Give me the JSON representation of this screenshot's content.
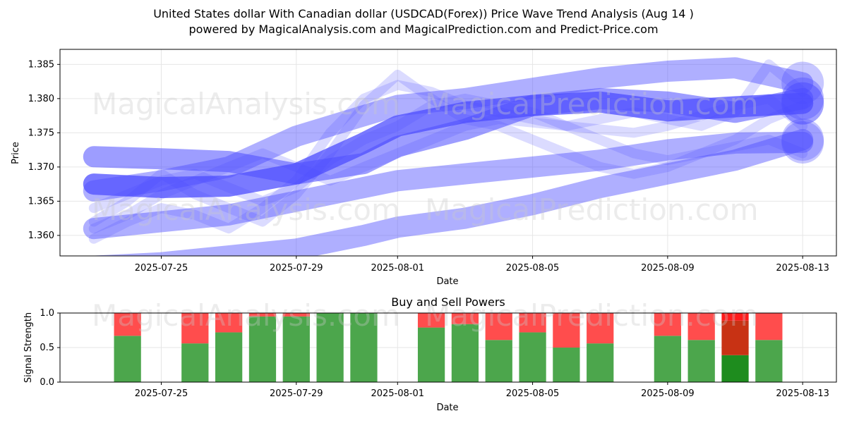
{
  "title_line1": "United States dollar With Canadian dollar (USDCAD(Forex)) Price Wave Trend Analysis (Aug 14 )",
  "title_line2": "powered by MagicalAnalysis.com and MagicalPrediction.com and Predict-Price.com",
  "watermarks": [
    "MagicalAnalysis.com",
    "MagicalPrediction.com"
  ],
  "colors": {
    "wave": "#4d4dff",
    "buy": "#4ca64c",
    "sell": "#ff4d4d",
    "buy_strong": "#1e8c1e",
    "sell_strong": "#ff1a1a",
    "sell_dark": "#c83214"
  },
  "chart_data": [
    {
      "type": "line",
      "title": "",
      "xlabel": "Date",
      "ylabel": "Price",
      "x_range": [
        "2025-07-22",
        "2025-08-14"
      ],
      "ylim": [
        1.357,
        1.3872
      ],
      "y_ticks": [
        1.36,
        1.365,
        1.37,
        1.375,
        1.38,
        1.385
      ],
      "x_ticks": [
        "2025-07-25",
        "2025-07-29",
        "2025-08-01",
        "2025-08-05",
        "2025-08-09",
        "2025-08-13"
      ],
      "grid": true,
      "series": [
        {
          "x": [
            "2025-07-23",
            "2025-07-25",
            "2025-07-27",
            "2025-07-29",
            "2025-07-31",
            "2025-08-01",
            "2025-08-03",
            "2025-08-05",
            "2025-08-07",
            "2025-08-09",
            "2025-08-11",
            "2025-08-13"
          ],
          "values": [
            1.3675,
            1.367,
            1.3672,
            1.369,
            1.3735,
            1.376,
            1.378,
            1.379,
            1.3795,
            1.3782,
            1.3788,
            1.3793
          ],
          "opacity": 0.75
        },
        {
          "x": [
            "2025-07-23",
            "2025-07-25",
            "2025-07-27",
            "2025-07-29",
            "2025-07-31",
            "2025-08-01",
            "2025-08-03",
            "2025-08-05",
            "2025-08-07",
            "2025-08-09",
            "2025-08-11",
            "2025-08-13"
          ],
          "values": [
            1.3715,
            1.3712,
            1.3708,
            1.369,
            1.3705,
            1.373,
            1.3755,
            1.379,
            1.38,
            1.3795,
            1.378,
            1.38
          ],
          "opacity": 0.55
        },
        {
          "x": [
            "2025-07-23",
            "2025-07-25",
            "2025-07-27",
            "2025-07-29",
            "2025-07-31",
            "2025-08-01",
            "2025-08-03",
            "2025-08-05",
            "2025-08-07",
            "2025-08-09",
            "2025-08-11",
            "2025-08-13"
          ],
          "values": [
            1.3665,
            1.368,
            1.37,
            1.3745,
            1.3775,
            1.379,
            1.38,
            1.3815,
            1.383,
            1.384,
            1.3845,
            1.3823
          ],
          "opacity": 0.45
        },
        {
          "x": [
            "2025-07-23",
            "2025-07-25",
            "2025-07-27",
            "2025-07-29",
            "2025-07-31",
            "2025-08-01",
            "2025-08-03",
            "2025-08-05",
            "2025-08-07",
            "2025-08-09",
            "2025-08-11",
            "2025-08-13"
          ],
          "values": [
            1.361,
            1.362,
            1.363,
            1.365,
            1.367,
            1.368,
            1.369,
            1.37,
            1.371,
            1.3725,
            1.3735,
            1.3736
          ],
          "opacity": 0.45
        },
        {
          "x": [
            "2025-07-23",
            "2025-07-25",
            "2025-07-27",
            "2025-07-29",
            "2025-07-31",
            "2025-08-01",
            "2025-08-03",
            "2025-08-05",
            "2025-08-07",
            "2025-08-09",
            "2025-08-11",
            "2025-08-13"
          ],
          "values": [
            1.3555,
            1.356,
            1.357,
            1.358,
            1.36,
            1.3612,
            1.3625,
            1.3645,
            1.367,
            1.369,
            1.371,
            1.374
          ],
          "opacity": 0.45
        },
        {
          "x": [
            "2025-07-23",
            "2025-07-24",
            "2025-07-25",
            "2025-07-26",
            "2025-07-27",
            "2025-07-28",
            "2025-07-29",
            "2025-07-30",
            "2025-07-31",
            "2025-08-01",
            "2025-08-02",
            "2025-08-03",
            "2025-08-04",
            "2025-08-05",
            "2025-08-06",
            "2025-08-07",
            "2025-08-08",
            "2025-08-09",
            "2025-08-10",
            "2025-08-11",
            "2025-08-12",
            "2025-08-13"
          ],
          "values": [
            1.362,
            1.365,
            1.369,
            1.366,
            1.364,
            1.362,
            1.366,
            1.372,
            1.379,
            1.3835,
            1.38,
            1.377,
            1.376,
            1.374,
            1.372,
            1.37,
            1.369,
            1.37,
            1.372,
            1.374,
            1.377,
            1.379
          ],
          "opacity": 0.2
        },
        {
          "x": [
            "2025-07-23",
            "2025-07-24",
            "2025-07-25",
            "2025-07-26",
            "2025-07-27",
            "2025-07-28",
            "2025-07-29",
            "2025-07-30",
            "2025-07-31",
            "2025-08-01",
            "2025-08-02",
            "2025-08-03",
            "2025-08-04",
            "2025-08-05",
            "2025-08-06",
            "2025-08-07",
            "2025-08-08",
            "2025-08-09",
            "2025-08-10",
            "2025-08-11",
            "2025-08-12",
            "2025-08-13"
          ],
          "values": [
            1.361,
            1.363,
            1.366,
            1.368,
            1.37,
            1.372,
            1.37,
            1.368,
            1.37,
            1.372,
            1.374,
            1.376,
            1.377,
            1.3765,
            1.376,
            1.3755,
            1.375,
            1.376,
            1.3775,
            1.379,
            1.38,
            1.376
          ],
          "opacity": 0.2
        },
        {
          "x": [
            "2025-07-23",
            "2025-07-24",
            "2025-07-25",
            "2025-07-26",
            "2025-07-27",
            "2025-07-28",
            "2025-07-29",
            "2025-07-30",
            "2025-07-31",
            "2025-08-01",
            "2025-08-02",
            "2025-08-03",
            "2025-08-04",
            "2025-08-05",
            "2025-08-06",
            "2025-08-07",
            "2025-08-08",
            "2025-08-09",
            "2025-08-10",
            "2025-08-11",
            "2025-08-12",
            "2025-08-13"
          ],
          "values": [
            1.3595,
            1.362,
            1.364,
            1.363,
            1.361,
            1.364,
            1.368,
            1.375,
            1.38,
            1.382,
            1.381,
            1.379,
            1.378,
            1.377,
            1.376,
            1.377,
            1.378,
            1.377,
            1.376,
            1.378,
            1.385,
            1.381
          ],
          "opacity": 0.2
        },
        {
          "x": [
            "2025-07-23",
            "2025-07-24",
            "2025-07-25",
            "2025-07-26",
            "2025-07-27",
            "2025-07-28",
            "2025-07-29",
            "2025-07-30",
            "2025-07-31",
            "2025-08-01",
            "2025-08-02",
            "2025-08-03",
            "2025-08-04",
            "2025-08-05",
            "2025-08-06",
            "2025-08-07",
            "2025-08-08",
            "2025-08-09",
            "2025-08-10",
            "2025-08-11",
            "2025-08-12",
            "2025-08-13"
          ],
          "values": [
            1.364,
            1.366,
            1.368,
            1.369,
            1.367,
            1.365,
            1.367,
            1.371,
            1.374,
            1.376,
            1.379,
            1.38,
            1.379,
            1.378,
            1.376,
            1.374,
            1.372,
            1.371,
            1.372,
            1.373,
            1.374,
            1.372
          ],
          "opacity": 0.2
        }
      ]
    },
    {
      "type": "bar",
      "title": "Buy and Sell Powers",
      "xlabel": "Date",
      "ylabel": "Signal Strength",
      "ylim": [
        0,
        1
      ],
      "y_ticks": [
        "0.0",
        "0.5",
        "1.0"
      ],
      "x_ticks": [
        "2025-07-25",
        "2025-07-29",
        "2025-08-01",
        "2025-08-05",
        "2025-08-09",
        "2025-08-13"
      ],
      "grid": true,
      "categories": [
        "2025-07-24",
        "2025-07-26",
        "2025-07-27",
        "2025-07-28",
        "2025-07-29",
        "2025-07-30",
        "2025-07-31",
        "2025-08-02",
        "2025-08-03",
        "2025-08-04",
        "2025-08-05",
        "2025-08-06",
        "2025-08-07",
        "2025-08-09",
        "2025-08-10",
        "2025-08-11",
        "2025-08-12"
      ],
      "series": [
        {
          "name": "Buy",
          "values": [
            0.67,
            0.56,
            0.72,
            0.95,
            0.95,
            1.0,
            1.0,
            0.79,
            0.84,
            0.61,
            0.72,
            0.5,
            0.56,
            0.67,
            0.61,
            0.39,
            0.61
          ]
        },
        {
          "name": "Sell",
          "values": [
            0.33,
            0.44,
            0.28,
            0.05,
            0.05,
            0.0,
            0.0,
            0.21,
            0.16,
            0.39,
            0.28,
            0.5,
            0.44,
            0.33,
            0.39,
            0.61,
            0.39
          ]
        }
      ]
    }
  ]
}
